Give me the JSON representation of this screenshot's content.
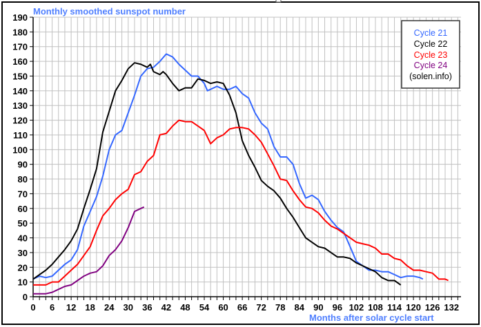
{
  "chart_data": {
    "type": "line",
    "title": "Monthly smoothed sunspot number",
    "xlabel": "Months after solar cycle start",
    "ylabel": "",
    "xlim": [
      0,
      135
    ],
    "ylim": [
      0,
      190
    ],
    "yticks": [
      0,
      10,
      20,
      30,
      40,
      50,
      60,
      70,
      80,
      90,
      100,
      110,
      120,
      130,
      140,
      150,
      160,
      170,
      180,
      190
    ],
    "xticks": [
      0,
      6,
      12,
      18,
      24,
      30,
      36,
      42,
      48,
      54,
      60,
      66,
      72,
      78,
      84,
      90,
      96,
      102,
      108,
      114,
      120,
      126,
      132
    ],
    "grid": true,
    "legend_position": "top-right",
    "legend_note": "(solen.info)",
    "colors": {
      "title": "#4f7fff",
      "axis_label": "#4f7fff",
      "grid": "#c0c0c0"
    },
    "series": [
      {
        "name": "Cycle 21",
        "color": "#3366ff",
        "points": [
          [
            0,
            12
          ],
          [
            2,
            14
          ],
          [
            4,
            13
          ],
          [
            6,
            14
          ],
          [
            8,
            18
          ],
          [
            10,
            22
          ],
          [
            12,
            25
          ],
          [
            14,
            32
          ],
          [
            16,
            48
          ],
          [
            18,
            58
          ],
          [
            20,
            68
          ],
          [
            22,
            82
          ],
          [
            24,
            100
          ],
          [
            26,
            110
          ],
          [
            28,
            113
          ],
          [
            30,
            125
          ],
          [
            32,
            137
          ],
          [
            34,
            150
          ],
          [
            36,
            155
          ],
          [
            38,
            156
          ],
          [
            40,
            160
          ],
          [
            42,
            165
          ],
          [
            44,
            163
          ],
          [
            46,
            158
          ],
          [
            48,
            154
          ],
          [
            50,
            150
          ],
          [
            52,
            150
          ],
          [
            54,
            145
          ],
          [
            55,
            140
          ],
          [
            56,
            141
          ],
          [
            58,
            143
          ],
          [
            60,
            141
          ],
          [
            62,
            141
          ],
          [
            64,
            143
          ],
          [
            66,
            138
          ],
          [
            68,
            135
          ],
          [
            70,
            125
          ],
          [
            72,
            118
          ],
          [
            74,
            114
          ],
          [
            76,
            102
          ],
          [
            78,
            95
          ],
          [
            80,
            95
          ],
          [
            82,
            90
          ],
          [
            84,
            77
          ],
          [
            86,
            67
          ],
          [
            88,
            69
          ],
          [
            90,
            66
          ],
          [
            92,
            58
          ],
          [
            94,
            52
          ],
          [
            96,
            47
          ],
          [
            98,
            44
          ],
          [
            100,
            34
          ],
          [
            102,
            24
          ],
          [
            104,
            21
          ],
          [
            106,
            18
          ],
          [
            108,
            18
          ],
          [
            110,
            17
          ],
          [
            112,
            17
          ],
          [
            114,
            15
          ],
          [
            116,
            13
          ],
          [
            118,
            14
          ],
          [
            120,
            14
          ],
          [
            122,
            13
          ],
          [
            123,
            12
          ]
        ]
      },
      {
        "name": "Cycle 22",
        "color": "#000000",
        "points": [
          [
            0,
            12
          ],
          [
            2,
            15
          ],
          [
            4,
            18
          ],
          [
            6,
            22
          ],
          [
            8,
            27
          ],
          [
            10,
            32
          ],
          [
            12,
            38
          ],
          [
            14,
            46
          ],
          [
            16,
            60
          ],
          [
            18,
            73
          ],
          [
            20,
            87
          ],
          [
            22,
            112
          ],
          [
            24,
            126
          ],
          [
            26,
            140
          ],
          [
            28,
            147
          ],
          [
            30,
            155
          ],
          [
            32,
            159
          ],
          [
            34,
            158
          ],
          [
            36,
            156
          ],
          [
            37,
            158
          ],
          [
            38,
            153
          ],
          [
            40,
            151
          ],
          [
            41,
            153
          ],
          [
            42,
            151
          ],
          [
            44,
            145
          ],
          [
            46,
            140
          ],
          [
            48,
            142
          ],
          [
            50,
            142
          ],
          [
            52,
            148
          ],
          [
            54,
            147
          ],
          [
            56,
            145
          ],
          [
            58,
            146
          ],
          [
            60,
            145
          ],
          [
            62,
            137
          ],
          [
            64,
            125
          ],
          [
            66,
            106
          ],
          [
            68,
            96
          ],
          [
            70,
            88
          ],
          [
            72,
            79
          ],
          [
            74,
            75
          ],
          [
            76,
            72
          ],
          [
            78,
            67
          ],
          [
            80,
            60
          ],
          [
            82,
            54
          ],
          [
            84,
            47
          ],
          [
            86,
            40
          ],
          [
            88,
            37
          ],
          [
            90,
            34
          ],
          [
            92,
            33
          ],
          [
            94,
            30
          ],
          [
            96,
            27
          ],
          [
            98,
            27
          ],
          [
            100,
            26
          ],
          [
            102,
            23
          ],
          [
            104,
            21
          ],
          [
            106,
            19
          ],
          [
            108,
            17
          ],
          [
            110,
            13
          ],
          [
            112,
            11
          ],
          [
            114,
            11
          ],
          [
            116,
            8
          ]
        ]
      },
      {
        "name": "Cycle 23",
        "color": "#ff0000",
        "points": [
          [
            0,
            8
          ],
          [
            2,
            8
          ],
          [
            4,
            8
          ],
          [
            6,
            10
          ],
          [
            8,
            10
          ],
          [
            10,
            14
          ],
          [
            12,
            18
          ],
          [
            14,
            22
          ],
          [
            16,
            28
          ],
          [
            18,
            34
          ],
          [
            20,
            45
          ],
          [
            22,
            55
          ],
          [
            24,
            60
          ],
          [
            26,
            66
          ],
          [
            28,
            70
          ],
          [
            30,
            73
          ],
          [
            32,
            83
          ],
          [
            34,
            85
          ],
          [
            36,
            92
          ],
          [
            38,
            96
          ],
          [
            40,
            110
          ],
          [
            42,
            111
          ],
          [
            44,
            116
          ],
          [
            46,
            120
          ],
          [
            48,
            119
          ],
          [
            50,
            119
          ],
          [
            52,
            116
          ],
          [
            54,
            113
          ],
          [
            56,
            104
          ],
          [
            58,
            108
          ],
          [
            60,
            110
          ],
          [
            62,
            114
          ],
          [
            64,
            115
          ],
          [
            66,
            115
          ],
          [
            68,
            114
          ],
          [
            70,
            110
          ],
          [
            72,
            105
          ],
          [
            74,
            97
          ],
          [
            76,
            89
          ],
          [
            78,
            80
          ],
          [
            80,
            79
          ],
          [
            82,
            72
          ],
          [
            84,
            66
          ],
          [
            86,
            61
          ],
          [
            88,
            60
          ],
          [
            90,
            57
          ],
          [
            92,
            52
          ],
          [
            94,
            48
          ],
          [
            96,
            46
          ],
          [
            98,
            43
          ],
          [
            100,
            40
          ],
          [
            102,
            37
          ],
          [
            104,
            36
          ],
          [
            106,
            35
          ],
          [
            108,
            33
          ],
          [
            110,
            29
          ],
          [
            112,
            29
          ],
          [
            114,
            26
          ],
          [
            116,
            25
          ],
          [
            118,
            21
          ],
          [
            120,
            18
          ],
          [
            122,
            18
          ],
          [
            124,
            17
          ],
          [
            126,
            16
          ],
          [
            128,
            12
          ],
          [
            130,
            12
          ],
          [
            131,
            11
          ]
        ]
      },
      {
        "name": "Cycle 24",
        "color": "#800080",
        "points": [
          [
            0,
            2
          ],
          [
            2,
            2
          ],
          [
            4,
            2
          ],
          [
            6,
            3
          ],
          [
            8,
            5
          ],
          [
            10,
            7
          ],
          [
            12,
            8
          ],
          [
            14,
            11
          ],
          [
            16,
            14
          ],
          [
            18,
            16
          ],
          [
            20,
            17
          ],
          [
            22,
            21
          ],
          [
            24,
            28
          ],
          [
            26,
            32
          ],
          [
            28,
            38
          ],
          [
            30,
            47
          ],
          [
            32,
            58
          ],
          [
            34,
            60
          ],
          [
            35,
            61
          ]
        ]
      }
    ]
  }
}
